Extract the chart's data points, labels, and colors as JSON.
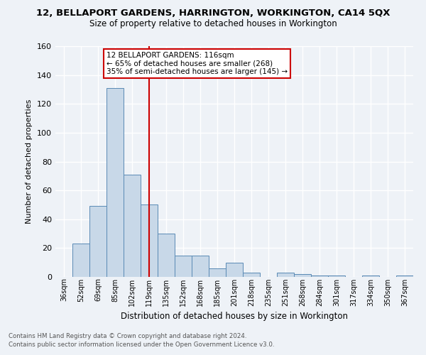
{
  "title1": "12, BELLAPORT GARDENS, HARRINGTON, WORKINGTON, CA14 5QX",
  "title2": "Size of property relative to detached houses in Workington",
  "xlabel": "Distribution of detached houses by size in Workington",
  "ylabel": "Number of detached properties",
  "categories": [
    "36sqm",
    "52sqm",
    "69sqm",
    "85sqm",
    "102sqm",
    "119sqm",
    "135sqm",
    "152sqm",
    "168sqm",
    "185sqm",
    "201sqm",
    "218sqm",
    "235sqm",
    "251sqm",
    "268sqm",
    "284sqm",
    "301sqm",
    "317sqm",
    "334sqm",
    "350sqm",
    "367sqm"
  ],
  "values": [
    0,
    23,
    49,
    131,
    71,
    50,
    30,
    15,
    15,
    6,
    10,
    3,
    0,
    3,
    2,
    1,
    1,
    0,
    1,
    0,
    1
  ],
  "bar_color": "#c8d8e8",
  "bar_edge_color": "#5a8ab5",
  "vline_x": 5.0,
  "vline_color": "#cc0000",
  "annotation_text": "12 BELLAPORT GARDENS: 116sqm\n← 65% of detached houses are smaller (268)\n35% of semi-detached houses are larger (145) →",
  "annotation_box_color": "#ffffff",
  "annotation_box_edge": "#cc0000",
  "ylim": [
    0,
    160
  ],
  "yticks": [
    0,
    20,
    40,
    60,
    80,
    100,
    120,
    140,
    160
  ],
  "footnote1": "Contains HM Land Registry data © Crown copyright and database right 2024.",
  "footnote2": "Contains public sector information licensed under the Open Government Licence v3.0.",
  "bg_color": "#eef2f7",
  "grid_color": "#ffffff"
}
